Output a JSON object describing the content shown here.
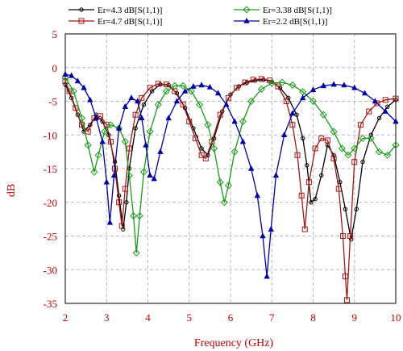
{
  "chart_data": {
    "type": "line",
    "xlabel": "Frequency (GHz)",
    "ylabel": "dB",
    "xlim": [
      2,
      10
    ],
    "ylim": [
      -35,
      5
    ],
    "xticks": [
      2,
      3,
      4,
      5,
      6,
      7,
      8,
      9,
      10
    ],
    "yticks": [
      -35,
      -30,
      -25,
      -20,
      -15,
      -10,
      -5,
      0,
      5
    ],
    "x_tick_labels": [
      "2",
      "3",
      "4",
      "5",
      "6",
      "7",
      "8",
      "9",
      "10"
    ],
    "y_tick_labels": [
      "-35",
      "-30",
      "-25",
      "-20",
      "-15",
      "-10",
      "-5",
      "0",
      "5"
    ],
    "grid": true,
    "legend_position": "top",
    "series": [
      {
        "name": "Er=4.3 dB[S(1,1)]",
        "color": "#000000",
        "marker": "circle",
        "points": [
          [
            2.0,
            -2.5
          ],
          [
            2.15,
            -4.5
          ],
          [
            2.3,
            -7.0
          ],
          [
            2.45,
            -9.5
          ],
          [
            2.6,
            -8.5
          ],
          [
            2.75,
            -7.0
          ],
          [
            2.9,
            -8.0
          ],
          [
            3.05,
            -10.0
          ],
          [
            3.2,
            -14.0
          ],
          [
            3.3,
            -19.0
          ],
          [
            3.4,
            -24.0
          ],
          [
            3.48,
            -20.0
          ],
          [
            3.55,
            -15.0
          ],
          [
            3.7,
            -9.0
          ],
          [
            3.9,
            -5.5
          ],
          [
            4.1,
            -3.5
          ],
          [
            4.3,
            -2.5
          ],
          [
            4.5,
            -2.6
          ],
          [
            4.7,
            -3.8
          ],
          [
            4.9,
            -6.0
          ],
          [
            5.1,
            -9.0
          ],
          [
            5.3,
            -12.0
          ],
          [
            5.45,
            -13.0
          ],
          [
            5.6,
            -10.5
          ],
          [
            5.8,
            -6.5
          ],
          [
            6.0,
            -4.0
          ],
          [
            6.2,
            -2.8
          ],
          [
            6.4,
            -2.2
          ],
          [
            6.6,
            -1.9
          ],
          [
            6.8,
            -1.8
          ],
          [
            7.0,
            -2.1
          ],
          [
            7.2,
            -3.0
          ],
          [
            7.4,
            -4.5
          ],
          [
            7.6,
            -7.0
          ],
          [
            7.75,
            -10.5
          ],
          [
            7.85,
            -14.5
          ],
          [
            7.95,
            -20.0
          ],
          [
            8.05,
            -19.5
          ],
          [
            8.2,
            -16.0
          ],
          [
            8.35,
            -11.5
          ],
          [
            8.5,
            -13.0
          ],
          [
            8.65,
            -17.0
          ],
          [
            8.78,
            -21.0
          ],
          [
            8.92,
            -25.5
          ],
          [
            9.05,
            -21.0
          ],
          [
            9.2,
            -14.0
          ],
          [
            9.4,
            -10.0
          ],
          [
            9.6,
            -7.5
          ],
          [
            9.8,
            -5.8
          ],
          [
            10.0,
            -4.8
          ]
        ]
      },
      {
        "name": "Er=4.7 dB[S(1,1)]",
        "color": "#a01818",
        "marker": "square",
        "points": [
          [
            2.0,
            -2.0
          ],
          [
            2.1,
            -3.5
          ],
          [
            2.25,
            -6.0
          ],
          [
            2.4,
            -8.5
          ],
          [
            2.55,
            -9.5
          ],
          [
            2.7,
            -7.5
          ],
          [
            2.85,
            -7.2
          ],
          [
            3.0,
            -8.5
          ],
          [
            3.1,
            -11.0
          ],
          [
            3.2,
            -15.0
          ],
          [
            3.3,
            -20.0
          ],
          [
            3.37,
            -23.5
          ],
          [
            3.45,
            -18.0
          ],
          [
            3.55,
            -12.0
          ],
          [
            3.7,
            -7.0
          ],
          [
            3.85,
            -4.5
          ],
          [
            4.05,
            -3.0
          ],
          [
            4.25,
            -2.4
          ],
          [
            4.45,
            -2.5
          ],
          [
            4.65,
            -3.5
          ],
          [
            4.85,
            -5.5
          ],
          [
            5.0,
            -8.0
          ],
          [
            5.15,
            -10.5
          ],
          [
            5.3,
            -13.0
          ],
          [
            5.4,
            -13.5
          ],
          [
            5.55,
            -11.0
          ],
          [
            5.75,
            -7.0
          ],
          [
            5.95,
            -4.5
          ],
          [
            6.15,
            -3.0
          ],
          [
            6.35,
            -2.2
          ],
          [
            6.55,
            -1.8
          ],
          [
            6.75,
            -1.7
          ],
          [
            6.95,
            -1.9
          ],
          [
            7.15,
            -2.8
          ],
          [
            7.35,
            -5.0
          ],
          [
            7.5,
            -8.5
          ],
          [
            7.62,
            -13.0
          ],
          [
            7.72,
            -19.0
          ],
          [
            7.8,
            -24.0
          ],
          [
            7.9,
            -17.0
          ],
          [
            8.05,
            -12.0
          ],
          [
            8.2,
            -10.5
          ],
          [
            8.35,
            -10.8
          ],
          [
            8.5,
            -13.5
          ],
          [
            8.62,
            -18.0
          ],
          [
            8.72,
            -25.0
          ],
          [
            8.78,
            -31.0
          ],
          [
            8.82,
            -34.5
          ],
          [
            8.9,
            -25.0
          ],
          [
            9.0,
            -14.0
          ],
          [
            9.15,
            -8.5
          ],
          [
            9.35,
            -6.5
          ],
          [
            9.55,
            -5.3
          ],
          [
            9.75,
            -4.8
          ],
          [
            10.0,
            -4.6
          ]
        ]
      },
      {
        "name": "Er=3.38 dB[S(1,1)]",
        "color": "#1a9a1a",
        "marker": "diamond",
        "points": [
          [
            2.0,
            -1.5
          ],
          [
            2.2,
            -3.5
          ],
          [
            2.4,
            -7.5
          ],
          [
            2.55,
            -11.5
          ],
          [
            2.7,
            -15.5
          ],
          [
            2.8,
            -13.0
          ],
          [
            2.95,
            -9.5
          ],
          [
            3.1,
            -8.5
          ],
          [
            3.3,
            -9.0
          ],
          [
            3.45,
            -11.0
          ],
          [
            3.55,
            -16.0
          ],
          [
            3.65,
            -22.0
          ],
          [
            3.72,
            -27.5
          ],
          [
            3.8,
            -22.0
          ],
          [
            3.9,
            -15.5
          ],
          [
            4.05,
            -9.5
          ],
          [
            4.25,
            -5.5
          ],
          [
            4.45,
            -3.5
          ],
          [
            4.65,
            -2.7
          ],
          [
            4.85,
            -2.7
          ],
          [
            5.05,
            -3.5
          ],
          [
            5.25,
            -5.5
          ],
          [
            5.45,
            -8.5
          ],
          [
            5.6,
            -12.0
          ],
          [
            5.75,
            -17.0
          ],
          [
            5.85,
            -20.0
          ],
          [
            5.95,
            -17.5
          ],
          [
            6.1,
            -12.5
          ],
          [
            6.3,
            -8.0
          ],
          [
            6.5,
            -5.0
          ],
          [
            6.75,
            -3.2
          ],
          [
            7.0,
            -2.3
          ],
          [
            7.25,
            -2.2
          ],
          [
            7.5,
            -2.6
          ],
          [
            7.75,
            -3.6
          ],
          [
            8.0,
            -5.0
          ],
          [
            8.25,
            -7.0
          ],
          [
            8.5,
            -9.5
          ],
          [
            8.7,
            -12.0
          ],
          [
            8.85,
            -13.0
          ],
          [
            9.0,
            -12.0
          ],
          [
            9.2,
            -10.5
          ],
          [
            9.4,
            -10.5
          ],
          [
            9.6,
            -12.5
          ],
          [
            9.8,
            -13.0
          ],
          [
            10.0,
            -11.5
          ]
        ]
      },
      {
        "name": "Er=2.2 dB[S(1,1)]",
        "color": "#0000a0",
        "marker": "triangle",
        "points": [
          [
            2.0,
            -1.0
          ],
          [
            2.15,
            -1.2
          ],
          [
            2.3,
            -2.0
          ],
          [
            2.45,
            -3.0
          ],
          [
            2.6,
            -4.8
          ],
          [
            2.75,
            -7.5
          ],
          [
            2.9,
            -11.0
          ],
          [
            3.0,
            -17.0
          ],
          [
            3.08,
            -23.0
          ],
          [
            3.18,
            -16.0
          ],
          [
            3.3,
            -9.0
          ],
          [
            3.45,
            -5.8
          ],
          [
            3.6,
            -4.5
          ],
          [
            3.75,
            -5.0
          ],
          [
            3.85,
            -7.5
          ],
          [
            3.95,
            -11.5
          ],
          [
            4.05,
            -16.0
          ],
          [
            4.15,
            -16.5
          ],
          [
            4.3,
            -12.5
          ],
          [
            4.5,
            -7.5
          ],
          [
            4.7,
            -5.0
          ],
          [
            4.9,
            -3.5
          ],
          [
            5.1,
            -2.8
          ],
          [
            5.3,
            -2.6
          ],
          [
            5.5,
            -2.9
          ],
          [
            5.7,
            -3.8
          ],
          [
            5.9,
            -5.5
          ],
          [
            6.1,
            -8.0
          ],
          [
            6.3,
            -11.0
          ],
          [
            6.5,
            -15.0
          ],
          [
            6.65,
            -19.0
          ],
          [
            6.78,
            -25.0
          ],
          [
            6.88,
            -31.0
          ],
          [
            6.98,
            -24.0
          ],
          [
            7.1,
            -16.0
          ],
          [
            7.3,
            -10.0
          ],
          [
            7.5,
            -6.8
          ],
          [
            7.75,
            -4.5
          ],
          [
            8.0,
            -3.3
          ],
          [
            8.25,
            -2.7
          ],
          [
            8.5,
            -2.5
          ],
          [
            8.75,
            -2.6
          ],
          [
            9.0,
            -3.0
          ],
          [
            9.25,
            -3.8
          ],
          [
            9.5,
            -5.0
          ],
          [
            9.75,
            -6.5
          ],
          [
            10.0,
            -8.0
          ]
        ]
      }
    ]
  }
}
